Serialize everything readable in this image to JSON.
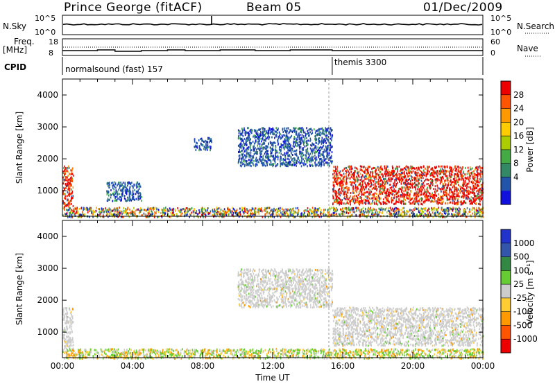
{
  "header": {
    "station": "Prince George (fitACF)",
    "beam": "Beam 05",
    "date": "01/Dec/2009"
  },
  "top_panels": {
    "nsky_label": "N.Sky",
    "nsky_top": "10^5",
    "nsky_bottom": "10^0",
    "nsearch_label": "N.Search",
    "nsearch_top": "10^5",
    "nsearch_bottom": "10^0",
    "freq_label": "Freq.",
    "freq_unit": "[MHz]",
    "freq_top": "18",
    "freq_bottom": "8",
    "nave_label": "Nave",
    "nave_top": "60",
    "nave_bottom": "0",
    "cpid_label": "CPID",
    "cpid_modes": [
      {
        "name": "normalsound (fast) 157",
        "start_hour": 0
      },
      {
        "name": "themis 3300",
        "start_hour": 15.4
      }
    ]
  },
  "chart_data": [
    {
      "type": "heatmap",
      "name": "power",
      "xlabel": "",
      "ylabel": "Slant Range [km]",
      "xlim": [
        0,
        24
      ],
      "ylim": [
        200,
        4500
      ],
      "yticks": [
        1000,
        2000,
        3000,
        4000
      ],
      "colorbar": {
        "label": "Power [dB]",
        "ticks": [
          "28",
          "24",
          "20",
          "16",
          "12",
          "8",
          "4"
        ],
        "colors": [
          "#ee0000",
          "#ff5500",
          "#ff9900",
          "#ffcc00",
          "#aacc00",
          "#44aa44",
          "#338866",
          "#2255aa",
          "#1111dd"
        ]
      },
      "scatter_regions": [
        {
          "t0": 0.0,
          "t1": 0.6,
          "r0": 500,
          "r1": 1800,
          "level": "high"
        },
        {
          "t0": 2.5,
          "t1": 4.5,
          "r0": 700,
          "r1": 1300,
          "level": "low"
        },
        {
          "t0": 7.5,
          "t1": 8.5,
          "r0": 2300,
          "r1": 2700,
          "level": "low"
        },
        {
          "t0": 10.0,
          "t1": 15.4,
          "r0": 1800,
          "r1": 3000,
          "level": "low"
        },
        {
          "t0": 15.4,
          "t1": 24.0,
          "r0": 600,
          "r1": 1800,
          "level": "high"
        },
        {
          "t0": 0.0,
          "t1": 24.0,
          "r0": 200,
          "r1": 500,
          "level": "mixed"
        }
      ]
    },
    {
      "type": "heatmap",
      "name": "velocity",
      "xlabel": "Time UT",
      "ylabel": "Slant Range [km]",
      "xlim": [
        0,
        24
      ],
      "ylim": [
        200,
        4500
      ],
      "xticks": [
        "00:00",
        "04:00",
        "08:00",
        "12:00",
        "16:00",
        "20:00",
        "00:00"
      ],
      "yticks": [
        1000,
        2000,
        3000,
        4000
      ],
      "colorbar": {
        "label": "Velocity [m s⁻¹]",
        "ticks": [
          "1000",
          "500",
          "100",
          "25",
          "-25",
          "-100",
          "-500",
          "-1000"
        ],
        "colors": [
          "#2233cc",
          "#3355aa",
          "#338844",
          "#66cc33",
          "#cccccc",
          "#ffcc33",
          "#ff9900",
          "#ff5500",
          "#ee0000"
        ]
      },
      "scatter_regions": [
        {
          "t0": 0.0,
          "t1": 0.6,
          "r0": 500,
          "r1": 1800,
          "level": "grey"
        },
        {
          "t0": 10.0,
          "t1": 15.4,
          "r0": 1800,
          "r1": 3000,
          "level": "grey"
        },
        {
          "t0": 15.4,
          "t1": 24.0,
          "r0": 600,
          "r1": 1800,
          "level": "grey"
        },
        {
          "t0": 0.0,
          "t1": 24.0,
          "r0": 200,
          "r1": 500,
          "level": "mixed"
        }
      ]
    }
  ]
}
